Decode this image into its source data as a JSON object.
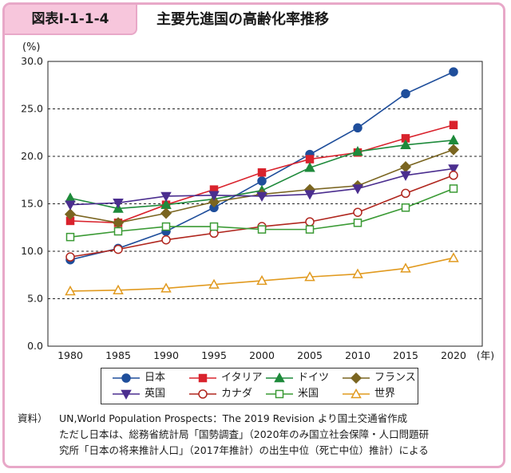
{
  "header": {
    "figure_label": "図表Ⅰ-1-1-4",
    "title": "主要先進国の高齢化率推移"
  },
  "source": {
    "label": "資料）",
    "lines": [
      "UN,World Population Prospects：The 2019 Revision より国土交通省作成",
      "ただし日本は、総務省統計局「国勢調査」（2020年のみ国立社会保障・人口問題研",
      "究所「日本の将来推計人口」（2017年推計）の出生中位（死亡中位）推計）による"
    ]
  },
  "chart_data": {
    "type": "line",
    "title": "主要先進国の高齢化率推移",
    "ylabel": "(%)",
    "xlabel": "(年)",
    "ylim": [
      0,
      30
    ],
    "yticks": [
      "0.0",
      "5.0",
      "10.0",
      "15.0",
      "20.0",
      "25.0",
      "30.0"
    ],
    "x": [
      "1980",
      "1985",
      "1990",
      "1995",
      "2000",
      "2005",
      "2010",
      "2015",
      "2020"
    ],
    "grid": "horizontal dashed",
    "legend_position": "bottom",
    "series": [
      {
        "name": "日本",
        "color": "#1f4e9b",
        "marker": "circle-filled",
        "values": [
          9.1,
          10.3,
          12.1,
          14.6,
          17.4,
          20.2,
          23.0,
          26.6,
          28.9
        ]
      },
      {
        "name": "イタリア",
        "color": "#d9232d",
        "marker": "square-filled",
        "values": [
          13.2,
          13.0,
          14.9,
          16.5,
          18.3,
          19.7,
          20.4,
          21.9,
          23.3
        ]
      },
      {
        "name": "ドイツ",
        "color": "#1e8a3b",
        "marker": "triangle-filled",
        "values": [
          15.6,
          14.5,
          14.9,
          15.5,
          16.4,
          18.8,
          20.5,
          21.2,
          21.7
        ]
      },
      {
        "name": "フランス",
        "color": "#7a6520",
        "marker": "diamond-filled",
        "values": [
          13.9,
          13.0,
          14.0,
          15.2,
          16.0,
          16.5,
          16.9,
          18.9,
          20.7
        ]
      },
      {
        "name": "英国",
        "color": "#4b2e8f",
        "marker": "triangle-down-filled",
        "values": [
          14.9,
          15.1,
          15.8,
          15.9,
          15.8,
          16.0,
          16.6,
          18.0,
          18.7
        ]
      },
      {
        "name": "カナダ",
        "color": "#b0261e",
        "marker": "circle-open",
        "values": [
          9.4,
          10.2,
          11.2,
          11.9,
          12.6,
          13.1,
          14.1,
          16.1,
          18.0
        ]
      },
      {
        "name": "米国",
        "color": "#3a9a34",
        "marker": "square-open",
        "values": [
          11.5,
          12.1,
          12.6,
          12.6,
          12.3,
          12.3,
          13.0,
          14.6,
          16.6
        ]
      },
      {
        "name": "世界",
        "color": "#e19a1f",
        "marker": "triangle-open",
        "values": [
          5.8,
          5.9,
          6.1,
          6.5,
          6.9,
          7.3,
          7.6,
          8.2,
          9.3
        ]
      }
    ]
  }
}
